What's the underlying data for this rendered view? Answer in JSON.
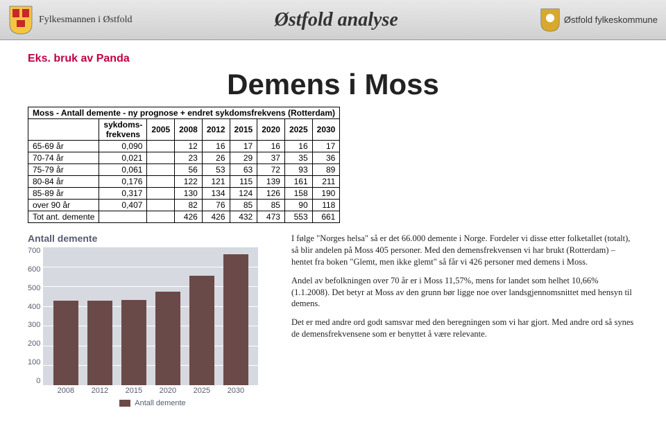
{
  "header": {
    "left_label": "Fylkesmannen i Østfold",
    "title": "Østfold analyse",
    "right_label": "Østfold fylkeskommune"
  },
  "subtitle": "Eks. bruk av Panda",
  "main_title": "Demens i Moss",
  "table": {
    "caption": "Moss - Antall demente - ny prognose + endret sykdomsfrekvens (Rotterdam)",
    "freq_header": "sykdoms-\nfrekvens",
    "years": [
      "2005",
      "2008",
      "2012",
      "2015",
      "2020",
      "2025",
      "2030"
    ],
    "rows": [
      {
        "label": "65-69 år",
        "freq": "0,090",
        "vals": [
          "",
          "12",
          "16",
          "17",
          "16",
          "16",
          "17"
        ]
      },
      {
        "label": "70-74 år",
        "freq": "0,021",
        "vals": [
          "",
          "23",
          "26",
          "29",
          "37",
          "35",
          "36"
        ]
      },
      {
        "label": "75-79 år",
        "freq": "0,061",
        "vals": [
          "",
          "56",
          "53",
          "63",
          "72",
          "93",
          "89"
        ]
      },
      {
        "label": "80-84 år",
        "freq": "0,176",
        "vals": [
          "",
          "122",
          "121",
          "115",
          "139",
          "161",
          "211"
        ]
      },
      {
        "label": "85-89 år",
        "freq": "0,317",
        "vals": [
          "",
          "130",
          "134",
          "124",
          "126",
          "158",
          "190"
        ]
      },
      {
        "label": "over 90 år",
        "freq": "0,407",
        "vals": [
          "",
          "82",
          "76",
          "85",
          "85",
          "90",
          "118"
        ]
      },
      {
        "label": "Tot ant. demente",
        "freq": "",
        "vals": [
          "",
          "426",
          "426",
          "432",
          "473",
          "553",
          "661"
        ]
      }
    ]
  },
  "chart": {
    "title": "Antall demente",
    "y_ticks": [
      "700",
      "600",
      "500",
      "400",
      "300",
      "200",
      "100",
      "0"
    ],
    "y_max": 700,
    "x_labels": [
      "2008",
      "2012",
      "2015",
      "2020",
      "2025",
      "2030"
    ],
    "values": [
      426,
      426,
      432,
      473,
      553,
      661
    ],
    "bar_color": "#6a4a48",
    "bg_color": "#d6d9e0",
    "grid_color": "#ffffff",
    "legend": "Antall demente"
  },
  "paragraphs": {
    "p1": "I følge \"Norges helsa\" så er det 66.000 demente i Norge. Fordeler vi disse etter folketallet (totalt), så blir andelen på Moss 405 personer. Med den demensfrekvensen vi har brukt (Rotterdam) – hentet fra boken \"Glemt, men ikke glemt\" så får vi 426 personer med demens i Moss.",
    "p2": "Andel av befolkningen over 70 år er i Moss 11,57%, mens for landet som helhet 10,66% (1.1.2008). Det betyr at Moss av den grunn bør ligge noe over landsgjennomsnittet med hensyn til demens.",
    "p3": "Det er med andre ord godt samsvar med den beregningen som vi har gjort. Med andre ord så synes de demensfrekvensene som er benyttet å være relevante."
  }
}
